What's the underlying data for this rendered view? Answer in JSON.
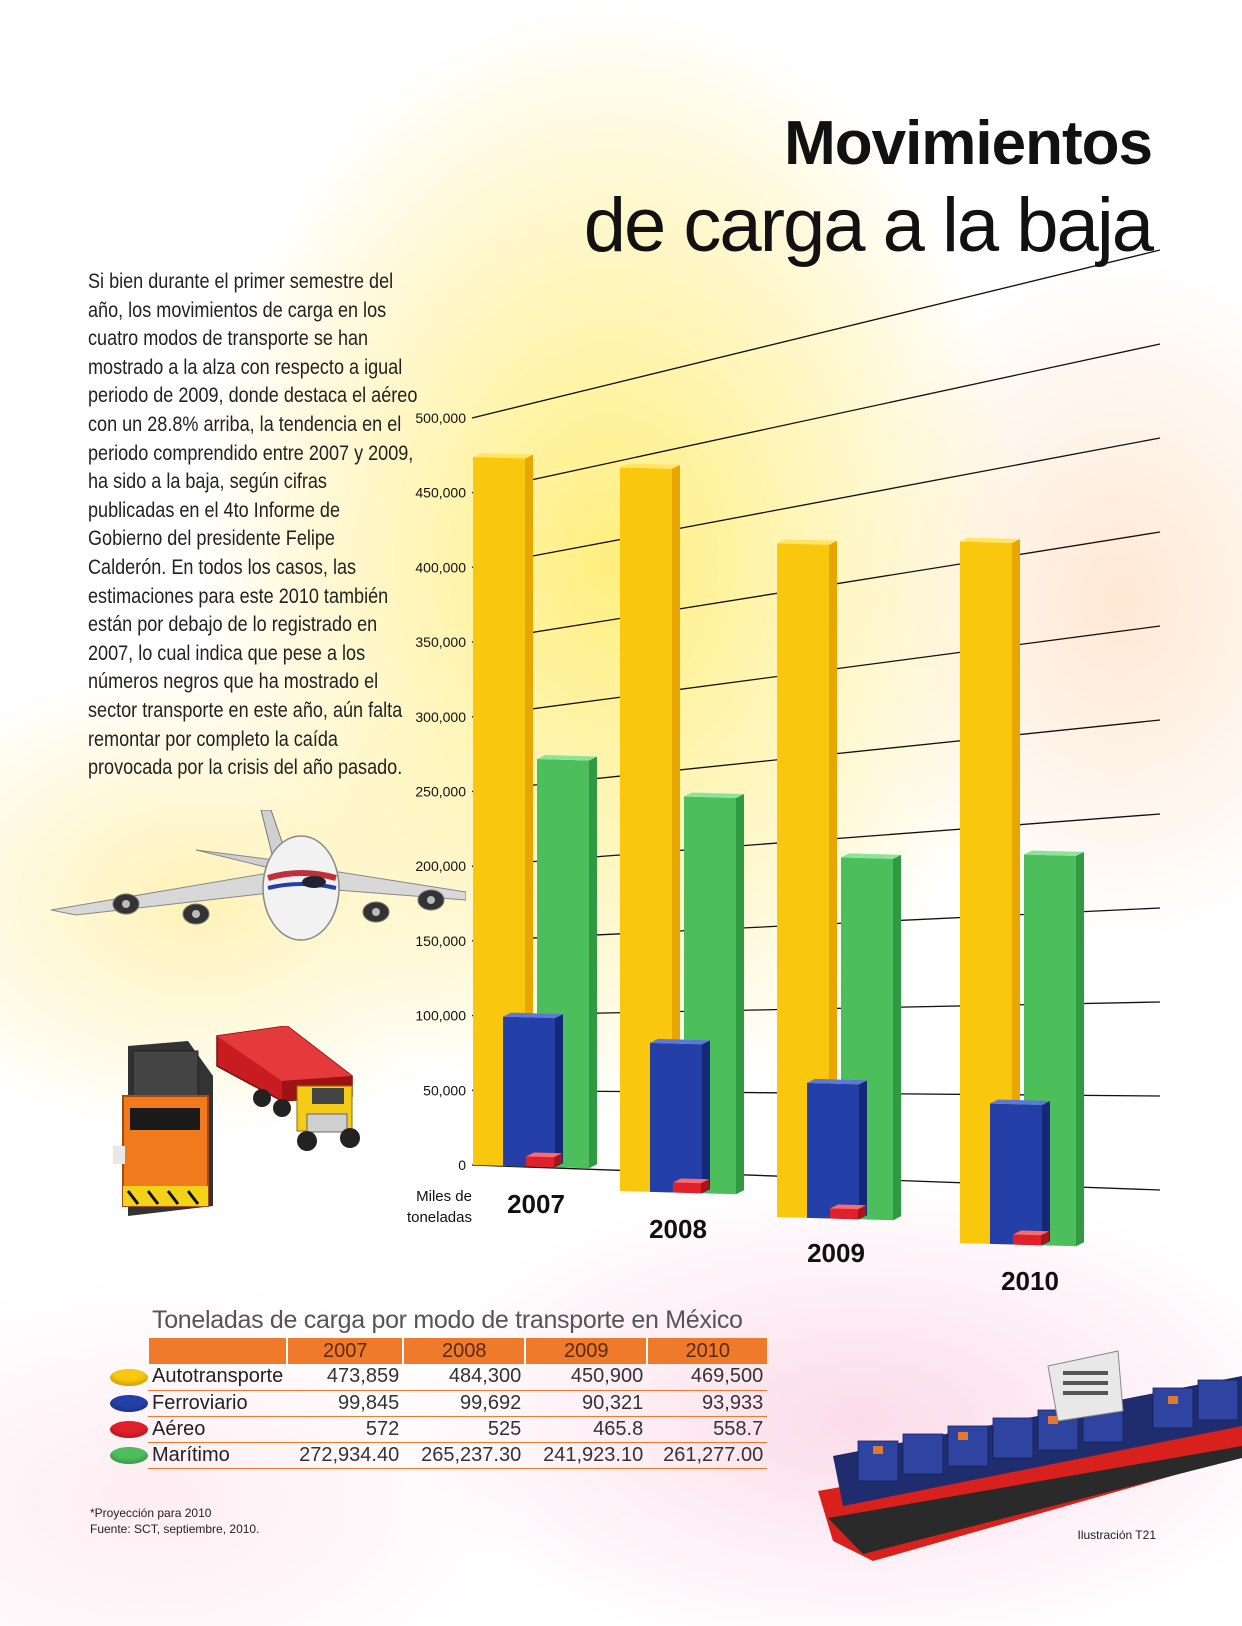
{
  "header": {
    "title_line1": "Movimientos",
    "title_line2": "de carga a la baja"
  },
  "intro_text": "Si bien durante el primer semestre del año, los movimientos de carga en los cuatro modos de transporte se han mostrado a la alza con respecto a igual periodo de 2009, donde destaca el aéreo con un 28.8% arriba, la tendencia en el periodo comprendido entre 2007 y 2009, ha sido a la baja, según cifras publicadas en el 4to Informe de Gobierno del presidente Felipe Calderón. En todos los casos, las estimaciones para este 2010 también están por debajo de lo registrado en 2007, lo cual indica que pese a los números negros que ha mostrado el sector transporte en este año, aún falta remontar por completo la caída provocada por la crisis del año pasado.",
  "colors": {
    "autotransporte": "#f9c80e",
    "ferroviario": "#2440a8",
    "aereo": "#e0202a",
    "maritimo": "#4cbf5c",
    "table_header": "#f07a2c"
  },
  "chart_data": {
    "type": "bar",
    "title": "Toneladas de carga por modo de transporte en México",
    "ylabel_line1": "Miles de",
    "ylabel_line2": "toneladas",
    "ylim": [
      0,
      500000
    ],
    "yticks": [
      "0",
      "50,000",
      "100,000",
      "150,000",
      "200,000",
      "250,000",
      "300,000",
      "350,000",
      "400,000",
      "450,000",
      "500,000"
    ],
    "categories": [
      "2007",
      "2008",
      "2009",
      "2010"
    ],
    "series": [
      {
        "name": "Autotransporte",
        "values": [
          473859,
          484300,
          450900,
          469500
        ]
      },
      {
        "name": "Ferroviario",
        "values": [
          99845,
          99692,
          90321,
          93933
        ]
      },
      {
        "name": "Aéreo",
        "values": [
          572,
          525,
          465.8,
          558.7
        ]
      },
      {
        "name": "Marítimo",
        "values": [
          272934.4,
          265237.3,
          241923.1,
          261277.0
        ]
      }
    ]
  },
  "table": {
    "title": "Toneladas de carga por modo de transporte en México",
    "columns": [
      "2007",
      "2008",
      "2009",
      "2010"
    ],
    "rows": [
      {
        "label": "Autotransporte",
        "values": [
          "473,859",
          "484,300",
          "450,900",
          "469,500"
        ]
      },
      {
        "label": "Ferroviario",
        "values": [
          "99,845",
          "99,692",
          "90,321",
          "93,933"
        ]
      },
      {
        "label": "Aéreo",
        "values": [
          "572",
          "525",
          "465.8",
          "558.7"
        ]
      },
      {
        "label": "Marítimo",
        "values": [
          "272,934.40",
          "265,237.30",
          "241,923.10",
          "261,277.00"
        ]
      }
    ]
  },
  "footnotes": {
    "projection": "*Proyección para 2010",
    "source": "Fuente: SCT, septiembre, 2010."
  },
  "credit": "Ilustración T21"
}
